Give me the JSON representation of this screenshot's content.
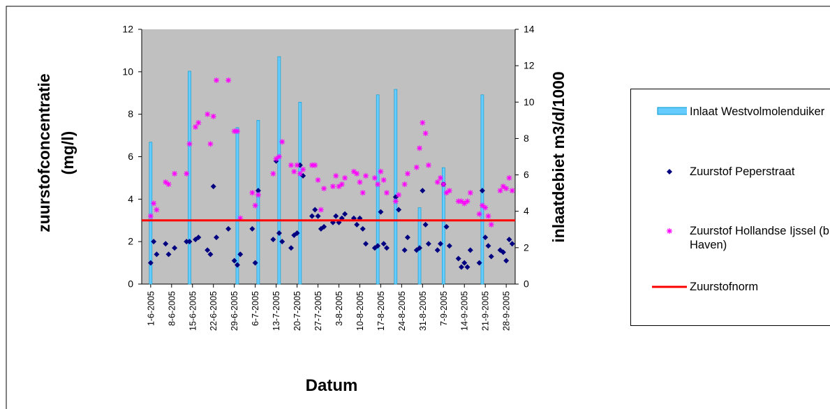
{
  "chart_data": {
    "type": "combo",
    "y_label": "zuurstofconcentratie (mg/l)",
    "y2_label": "inlaatdebiet m3/d/1000",
    "x_label": "Datum",
    "xlim": [
      "29-5-2005",
      "1-10-2005"
    ],
    "xticks": [
      "1-6-2005",
      "8-6-2005",
      "15-6-2005",
      "22-6-2005",
      "29-6-2005",
      "6-7-2005",
      "13-7-2005",
      "20-7-2005",
      "27-7-2005",
      "3-8-2005",
      "10-8-2005",
      "17-8-2005",
      "24-8-2005",
      "31-8-2005",
      "7-9-2005",
      "14-9-2005",
      "21-9-2005",
      "28-9-2005"
    ],
    "ylim": [
      0,
      12
    ],
    "yticks": [
      0,
      2,
      4,
      6,
      8,
      10,
      12
    ],
    "y2lim": [
      0,
      14
    ],
    "y2ticks": [
      0,
      2,
      4,
      6,
      8,
      10,
      12,
      14
    ],
    "legend": "right",
    "x": [
      "1-6-2005",
      "2-6-2005",
      "3-6-2005",
      "6-6-2005",
      "7-6-2005",
      "9-6-2005",
      "13-6-2005",
      "14-6-2005",
      "16-6-2005",
      "17-6-2005",
      "20-6-2005",
      "21-6-2005",
      "22-6-2005",
      "23-6-2005",
      "27-6-2005",
      "29-6-2005",
      "30-6-2005",
      "1-7-2005",
      "5-7-2005",
      "6-7-2005",
      "7-7-2005",
      "12-7-2005",
      "13-7-2005",
      "14-7-2005",
      "15-7-2005",
      "18-7-2005",
      "19-7-2005",
      "20-7-2005",
      "21-7-2005",
      "22-7-2005",
      "25-7-2005",
      "26-7-2005",
      "27-7-2005",
      "28-7-2005",
      "29-7-2005",
      "1-8-2005",
      "2-8-2005",
      "3-8-2005",
      "4-8-2005",
      "5-8-2005",
      "8-8-2005",
      "9-8-2005",
      "10-8-2005",
      "11-8-2005",
      "12-8-2005",
      "15-8-2005",
      "16-8-2005",
      "17-8-2005",
      "18-8-2005",
      "19-8-2005",
      "22-8-2005",
      "23-8-2005",
      "25-8-2005",
      "26-8-2005",
      "29-8-2005",
      "30-8-2005",
      "31-8-2005",
      "1-9-2005",
      "2-9-2005",
      "5-9-2005",
      "6-9-2005",
      "7-9-2005",
      "8-9-2005",
      "9-9-2005",
      "12-9-2005",
      "13-9-2005",
      "14-9-2005",
      "15-9-2005",
      "16-9-2005",
      "19-9-2005",
      "20-9-2005",
      "21-9-2005",
      "22-9-2005",
      "23-9-2005",
      "26-9-2005",
      "27-9-2005",
      "28-9-2005",
      "29-9-2005",
      "30-9-2005"
    ],
    "series": [
      {
        "name": "Inlaat Westvolmolenduiker",
        "type": "bar",
        "axis": "y2",
        "color": "#66ccff",
        "x": [
          "1-6-2005",
          "14-6-2005",
          "30-6-2005",
          "7-7-2005",
          "14-7-2005",
          "21-7-2005",
          "16-8-2005",
          "22-8-2005",
          "30-8-2005",
          "7-9-2005",
          "20-9-2005"
        ],
        "values": [
          7.8,
          11.7,
          8.6,
          9.0,
          12.5,
          10.0,
          10.4,
          10.7,
          4.2,
          6.4,
          10.4
        ]
      },
      {
        "name": "Zuurstof Peperstraat",
        "type": "scatter",
        "marker": "diamond",
        "color": "#000080",
        "values": [
          1.0,
          2.0,
          1.4,
          1.9,
          1.4,
          1.7,
          2.0,
          2.0,
          2.1,
          2.2,
          1.6,
          1.4,
          4.6,
          2.2,
          2.6,
          1.1,
          0.9,
          1.4,
          2.6,
          1.0,
          4.4,
          2.1,
          5.8,
          2.4,
          2.0,
          1.7,
          2.3,
          2.4,
          5.6,
          5.1,
          3.2,
          3.5,
          3.2,
          2.6,
          2.7,
          2.9,
          3.2,
          2.9,
          3.1,
          3.3,
          3.1,
          2.8,
          3.1,
          2.6,
          1.9,
          1.7,
          1.8,
          3.4,
          1.9,
          1.7,
          4.1,
          3.5,
          1.6,
          2.2,
          1.6,
          1.7,
          4.4,
          2.8,
          1.9,
          1.6,
          1.9,
          4.7,
          2.7,
          1.8,
          1.2,
          0.8,
          1.0,
          0.8,
          1.6,
          1.0,
          4.4,
          2.2,
          1.8,
          1.3,
          1.6,
          1.5,
          1.1,
          2.1,
          1.9
        ]
      },
      {
        "name": "Zuurstof Hollandse Ijssel (bij Haven)",
        "type": "scatter",
        "marker": "asterisk",
        "color": "#ff00ff",
        "values": [
          3.2,
          3.8,
          3.5,
          4.8,
          4.7,
          5.2,
          5.2,
          6.6,
          7.4,
          7.6,
          8.0,
          6.6,
          7.9,
          9.6,
          9.6,
          7.2,
          7.2,
          3.1,
          4.3,
          3.7,
          4.2,
          5.2,
          5.9,
          6.0,
          6.7,
          5.6,
          5.3,
          5.6,
          5.2,
          5.4,
          5.6,
          5.6,
          4.9,
          3.5,
          4.5,
          4.6,
          5.1,
          4.6,
          4.7,
          5.0,
          5.3,
          5.2,
          4.8,
          4.3,
          5.1,
          5.0,
          4.7,
          5.3,
          4.9,
          4.3,
          3.9,
          4.2,
          4.7,
          5.2,
          5.5,
          6.4,
          7.6,
          7.1,
          5.6,
          4.8,
          5.0,
          4.7,
          4.3,
          4.4,
          3.9,
          3.9,
          3.8,
          3.9,
          4.3,
          3.3,
          3.7,
          3.6,
          3.2,
          2.8,
          4.4,
          4.6,
          4.5,
          5.0,
          4.4
        ]
      },
      {
        "name": "Zuurstofnorm",
        "type": "line",
        "color": "#ff0000",
        "x": [
          "29-5-2005",
          "1-10-2005"
        ],
        "values": [
          3,
          3
        ]
      }
    ]
  }
}
